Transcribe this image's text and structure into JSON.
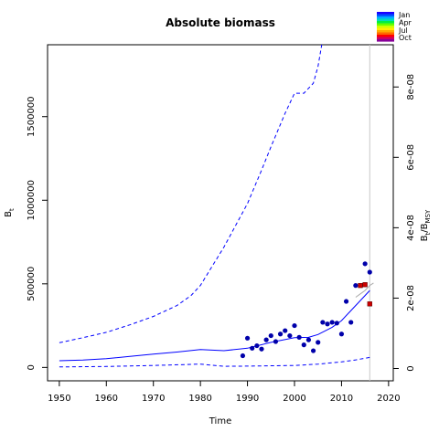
{
  "chart_data": {
    "type": "line",
    "title": "Absolute biomass",
    "xlabel": "Time",
    "ylabel_left": "B",
    "ylabel_left_sub": "t",
    "ylabel_right": "B",
    "ylabel_right_sub1": "t",
    "ylabel_right_mid": "/B",
    "ylabel_right_sub2": "MSY",
    "xlim": [
      1947.5,
      2021
    ],
    "ylim": [
      -80000,
      1930000
    ],
    "ylim_right": [
      -3.5e-09,
      9.2e-08
    ],
    "x_ticks": [
      1950,
      1960,
      1970,
      1980,
      1990,
      2000,
      2010,
      2020
    ],
    "x_tick_labels": [
      "1950",
      "1960",
      "1970",
      "1980",
      "1990",
      "2000",
      "2010",
      "2020"
    ],
    "y_ticks": [
      0,
      500000,
      1000000,
      1500000
    ],
    "y_tick_labels": [
      "0",
      "500000",
      "1000000",
      "1500000"
    ],
    "y_ticks_right": [
      0,
      2e-08,
      4e-08,
      6e-08,
      8e-08
    ],
    "y_tick_labels_right": [
      "0",
      "2e-08",
      "4e-08",
      "6e-08",
      "8e-08"
    ],
    "vline_x": 2016,
    "legend": {
      "placement": "top-right",
      "labels": [
        "Jan",
        "Apr",
        "Jul",
        "Oct"
      ]
    },
    "colors": {
      "line": "#0000ff",
      "points": "#0000aa",
      "recent": "#cc0000"
    },
    "median": {
      "x": [
        1950,
        1955,
        1960,
        1965,
        1970,
        1975,
        1980,
        1985,
        1990,
        1995,
        2000,
        2003,
        2005,
        2008,
        2010,
        2012,
        2014,
        2016
      ],
      "y": [
        40000,
        44000,
        52000,
        66000,
        80000,
        92000,
        107000,
        100000,
        115000,
        150000,
        178000,
        180000,
        197000,
        240000,
        280000,
        340000,
        400000,
        460000
      ]
    },
    "upper": {
      "x": [
        1950,
        1955,
        1960,
        1965,
        1970,
        1975,
        1978,
        1980,
        1985,
        1990,
        1993,
        1995,
        1998,
        2000,
        2002,
        2004,
        2005,
        2005.8
      ],
      "y": [
        148000,
        178000,
        210000,
        255000,
        305000,
        370000,
        430000,
        490000,
        720000,
        980000,
        1180000,
        1320000,
        1520000,
        1640000,
        1640000,
        1700000,
        1800000,
        1930000
      ]
    },
    "lower": {
      "x": [
        1950,
        1960,
        1970,
        1980,
        1985,
        1990,
        2000,
        2005,
        2010,
        2013,
        2016
      ],
      "y": [
        3000,
        6000,
        12000,
        20000,
        7000,
        8000,
        12000,
        20000,
        33000,
        45000,
        60000
      ]
    },
    "grey_line": {
      "x": [
        2013,
        2014,
        2015,
        2016,
        2016.8
      ],
      "y": [
        420000,
        440000,
        460000,
        490000,
        505000
      ]
    },
    "observations": {
      "x": [
        1989,
        1990,
        1991,
        1992,
        1993,
        1994,
        1995,
        1996,
        1997,
        1998,
        1999,
        2000,
        2001,
        2002,
        2003,
        2004,
        2005,
        2006,
        2007,
        2008,
        2009,
        2010,
        2011,
        2012,
        2013,
        2015,
        2016
      ],
      "y": [
        70000,
        175000,
        115000,
        130000,
        110000,
        165000,
        190000,
        155000,
        200000,
        220000,
        190000,
        250000,
        180000,
        135000,
        165000,
        100000,
        150000,
        270000,
        260000,
        270000,
        265000,
        200000,
        395000,
        270000,
        490000,
        620000,
        570000
      ]
    },
    "recent_points": {
      "x": [
        2014,
        2015,
        2016
      ],
      "y": [
        490000,
        495000,
        380000
      ]
    }
  }
}
